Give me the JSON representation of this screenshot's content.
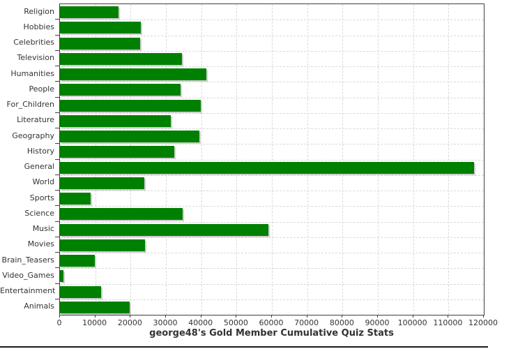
{
  "chart_data": {
    "type": "bar",
    "orientation": "horizontal",
    "title": "george48's Gold Member Cumulative Quiz Stats",
    "categories": [
      "Religion",
      "Hobbies",
      "Celebrities",
      "Television",
      "Humanities",
      "People",
      "For_Children",
      "Literature",
      "Geography",
      "History",
      "General",
      "World",
      "Sports",
      "Science",
      "Music",
      "Movies",
      "Brain_Teasers",
      "Video_Games",
      "Entertainment",
      "Animals"
    ],
    "values": [
      16600,
      22800,
      22700,
      34600,
      41400,
      34200,
      39800,
      31400,
      39500,
      32400,
      117200,
      23800,
      8700,
      34800,
      59000,
      24100,
      9900,
      900,
      11700,
      19800
    ],
    "xlim": [
      0,
      120000
    ],
    "xticks": [
      0,
      10000,
      20000,
      30000,
      40000,
      50000,
      60000,
      70000,
      80000,
      90000,
      100000,
      110000,
      120000
    ],
    "xlabel": "",
    "ylabel": "",
    "grid": "dashed-both",
    "legend": "none",
    "colors": {
      "bar": "#008000",
      "bar_shadow": "#cfcfcf",
      "gridline": "#d9d9d9",
      "plot_border": "#3f3f3f",
      "label": "#333333",
      "background": "#ffffff",
      "bottom_rule": "#1a1a1a"
    }
  }
}
